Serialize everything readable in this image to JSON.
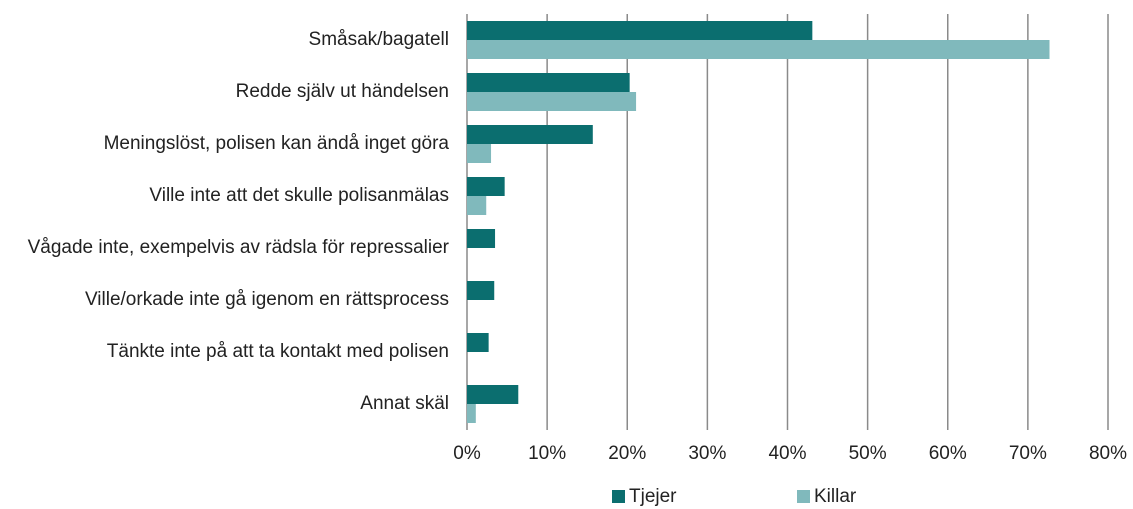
{
  "chart_data": {
    "type": "hbar",
    "categories": [
      "Småsak/bagatell",
      "Redde själv ut händelsen",
      "Meningslöst, polisen kan ändå inget göra",
      "Ville inte att det skulle polisanmälas",
      "Vågade inte, exempelvis av rädsla för repressalier",
      "Ville/orkade inte gå igenom en rättsprocess",
      "Tänkte inte på att ta kontakt med polisen",
      "Annat skäl"
    ],
    "series": [
      {
        "name": "Tjejer",
        "color": "#0b6e6f",
        "values": [
          43.1,
          20.3,
          15.7,
          4.7,
          3.5,
          3.4,
          2.7,
          6.4
        ]
      },
      {
        "name": "Killar",
        "color": "#80b9bc",
        "values": [
          72.7,
          21.1,
          3.0,
          2.4,
          0,
          0,
          0,
          1.1
        ]
      }
    ],
    "xlim": [
      0,
      80
    ],
    "xticks": [
      {
        "value": 0,
        "label": "0%"
      },
      {
        "value": 10,
        "label": "10%"
      },
      {
        "value": 20,
        "label": "20%"
      },
      {
        "value": 30,
        "label": "30%"
      },
      {
        "value": 40,
        "label": "40%"
      },
      {
        "value": 50,
        "label": "50%"
      },
      {
        "value": 60,
        "label": "60%"
      },
      {
        "value": 70,
        "label": "70%"
      },
      {
        "value": 80,
        "label": "80%"
      }
    ],
    "grid": true,
    "legend": "bottom"
  }
}
